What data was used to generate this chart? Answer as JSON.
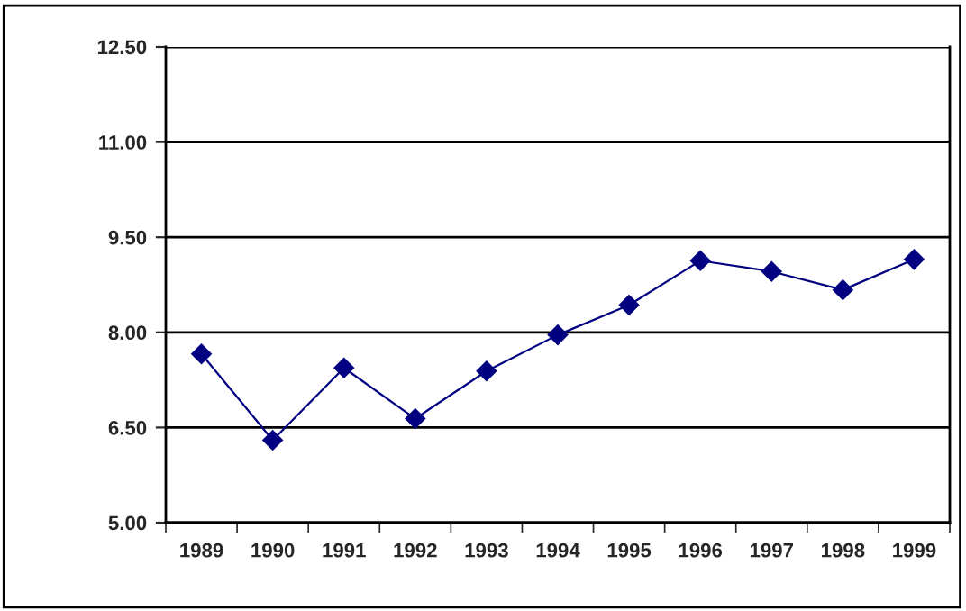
{
  "chart_data": {
    "type": "line",
    "categories": [
      "1989",
      "1990",
      "1991",
      "1992",
      "1993",
      "1994",
      "1995",
      "1996",
      "1997",
      "1998",
      "1999"
    ],
    "series": [
      {
        "color": "#000080",
        "values": [
          7.66,
          6.3,
          7.44,
          6.64,
          7.39,
          7.96,
          8.43,
          9.13,
          8.96,
          8.67,
          9.15
        ]
      }
    ],
    "ylim": [
      5,
      12.5
    ],
    "yticks": [
      {
        "value": 5,
        "label": "5.00"
      },
      {
        "value": 6.5,
        "label": "6.50"
      },
      {
        "value": 8,
        "label": "8.00"
      },
      {
        "value": 9.5,
        "label": "9.50"
      },
      {
        "value": 11,
        "label": "11.00"
      },
      {
        "value": 12.5,
        "label": "12.50"
      }
    ],
    "grid": "y",
    "marker": "diamond",
    "line_style": "solid",
    "legend": false
  }
}
